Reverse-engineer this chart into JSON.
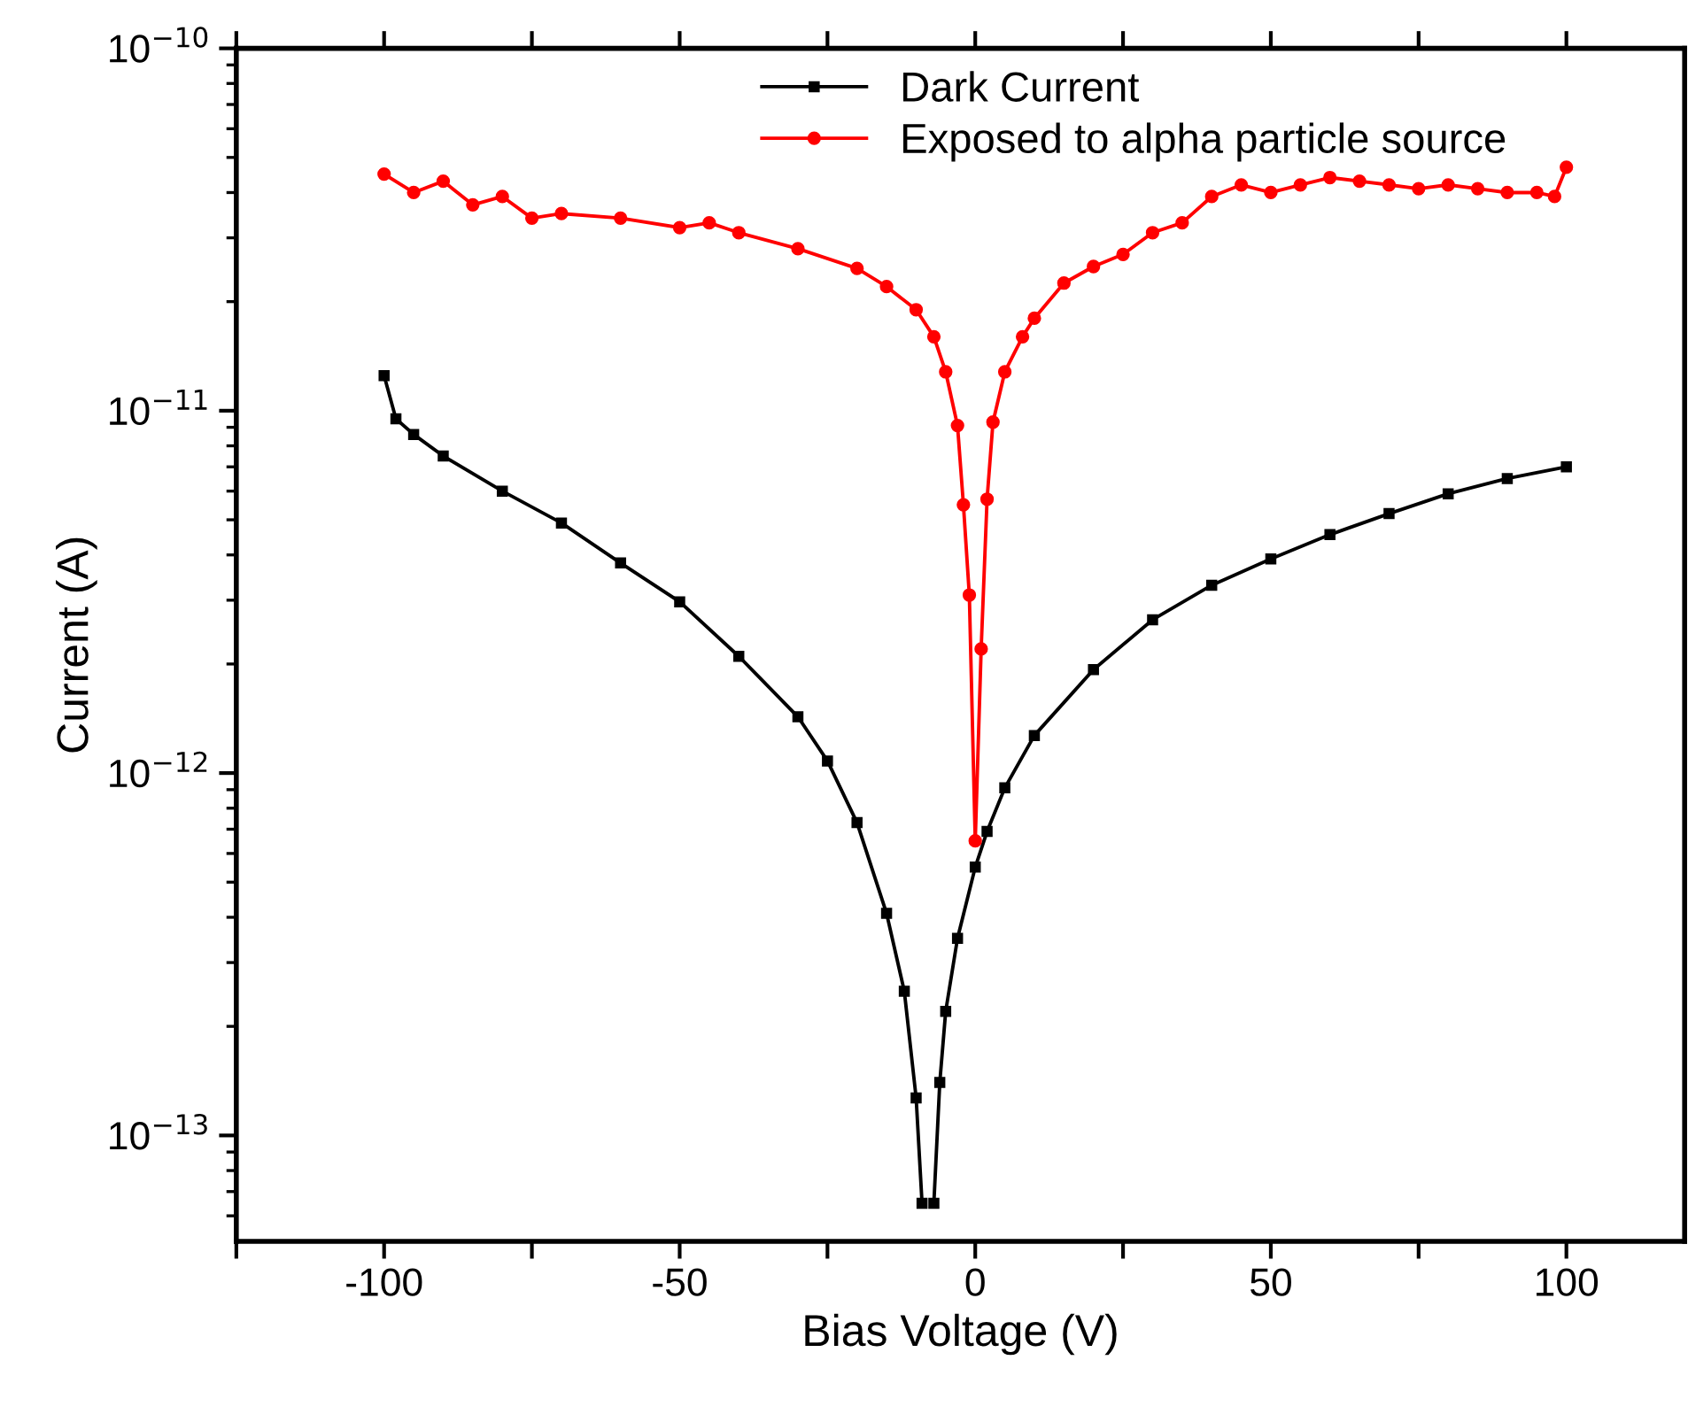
{
  "chart_data": {
    "type": "line",
    "xlabel": "Bias Voltage (V)",
    "ylabel": "Current (A)",
    "log": "y",
    "xlim": [
      -125,
      120
    ],
    "xticks": [
      {
        "value": -125,
        "label": null
      },
      -100,
      {
        "value": -75,
        "label": null
      },
      -50,
      {
        "value": -25,
        "label": null
      },
      0,
      {
        "value": 25,
        "label": null
      },
      50,
      {
        "value": 75,
        "label": null
      },
      100
    ],
    "ylim": [
      5.1e-14,
      1e-10
    ],
    "yticks": [
      {
        "value": 1e-13,
        "label": "10$^{−13}$"
      },
      {
        "value": 1e-12,
        "label": "10$^{−12}$"
      },
      {
        "value": 1e-11,
        "label": "10$^{−11}$"
      },
      {
        "value": 1e-10,
        "label": "10$^{−10}$"
      }
    ],
    "grid": false,
    "legend": "top",
    "line_style": "solid",
    "series": [
      {
        "name": "Dark Current",
        "color": "#000000",
        "marker": "square",
        "x": [
          -100,
          -98,
          -95,
          -90,
          -80,
          -70,
          -60,
          -50,
          -40,
          -30,
          -25,
          -20,
          -15,
          -12,
          -10,
          -9,
          -8,
          -7,
          -6,
          -5,
          -3,
          0,
          2,
          5,
          10,
          20,
          30,
          40,
          50,
          60,
          70,
          80,
          90,
          100
        ],
        "values": [
          1.25e-11,
          9.5e-12,
          8.6e-12,
          7.5e-12,
          6e-12,
          4.9e-12,
          3.8e-12,
          2.97e-12,
          2.1e-12,
          1.43e-12,
          1.08e-12,
          7.3e-13,
          4.1e-13,
          2.5e-13,
          1.27e-13,
          6.5e-14,
          null,
          6.5e-14,
          1.4e-13,
          2.2e-13,
          3.5e-13,
          5.5e-13,
          6.9e-13,
          9.1e-13,
          1.27e-12,
          1.93e-12,
          2.65e-12,
          3.3e-12,
          3.9e-12,
          4.55e-12,
          5.2e-12,
          5.9e-12,
          6.5e-12,
          7e-12
        ]
      },
      {
        "name": "Exposed to alpha particle source",
        "color": "#ff0000",
        "marker": "circle",
        "x": [
          -100,
          -95,
          -90,
          -85,
          -80,
          -75,
          -70,
          -60,
          -50,
          -45,
          -40,
          -30,
          -20,
          -15,
          -10,
          -7,
          -5,
          -3,
          -2,
          -1,
          0,
          1,
          2,
          3,
          5,
          8,
          10,
          15,
          20,
          25,
          30,
          35,
          40,
          45,
          50,
          55,
          60,
          65,
          70,
          75,
          80,
          85,
          90,
          95,
          98,
          100
        ],
        "values": [
          4.5e-11,
          4e-11,
          4.3e-11,
          3.7e-11,
          3.9e-11,
          3.4e-11,
          3.5e-11,
          3.4e-11,
          3.2e-11,
          3.3e-11,
          3.1e-11,
          2.8e-11,
          2.47e-11,
          2.2e-11,
          1.9e-11,
          1.6e-11,
          1.28e-11,
          9.1e-12,
          5.5e-12,
          3.1e-12,
          6.5e-13,
          2.2e-12,
          5.7e-12,
          9.3e-12,
          1.28e-11,
          1.6e-11,
          1.8e-11,
          2.25e-11,
          2.5e-11,
          2.7e-11,
          3.1e-11,
          3.3e-11,
          3.9e-11,
          4.2e-11,
          4e-11,
          4.2e-11,
          4.4e-11,
          4.3e-11,
          4.2e-11,
          4.1e-11,
          4.2e-11,
          4.1e-11,
          4e-11,
          4e-11,
          3.9e-11,
          4.7e-11
        ]
      }
    ]
  }
}
